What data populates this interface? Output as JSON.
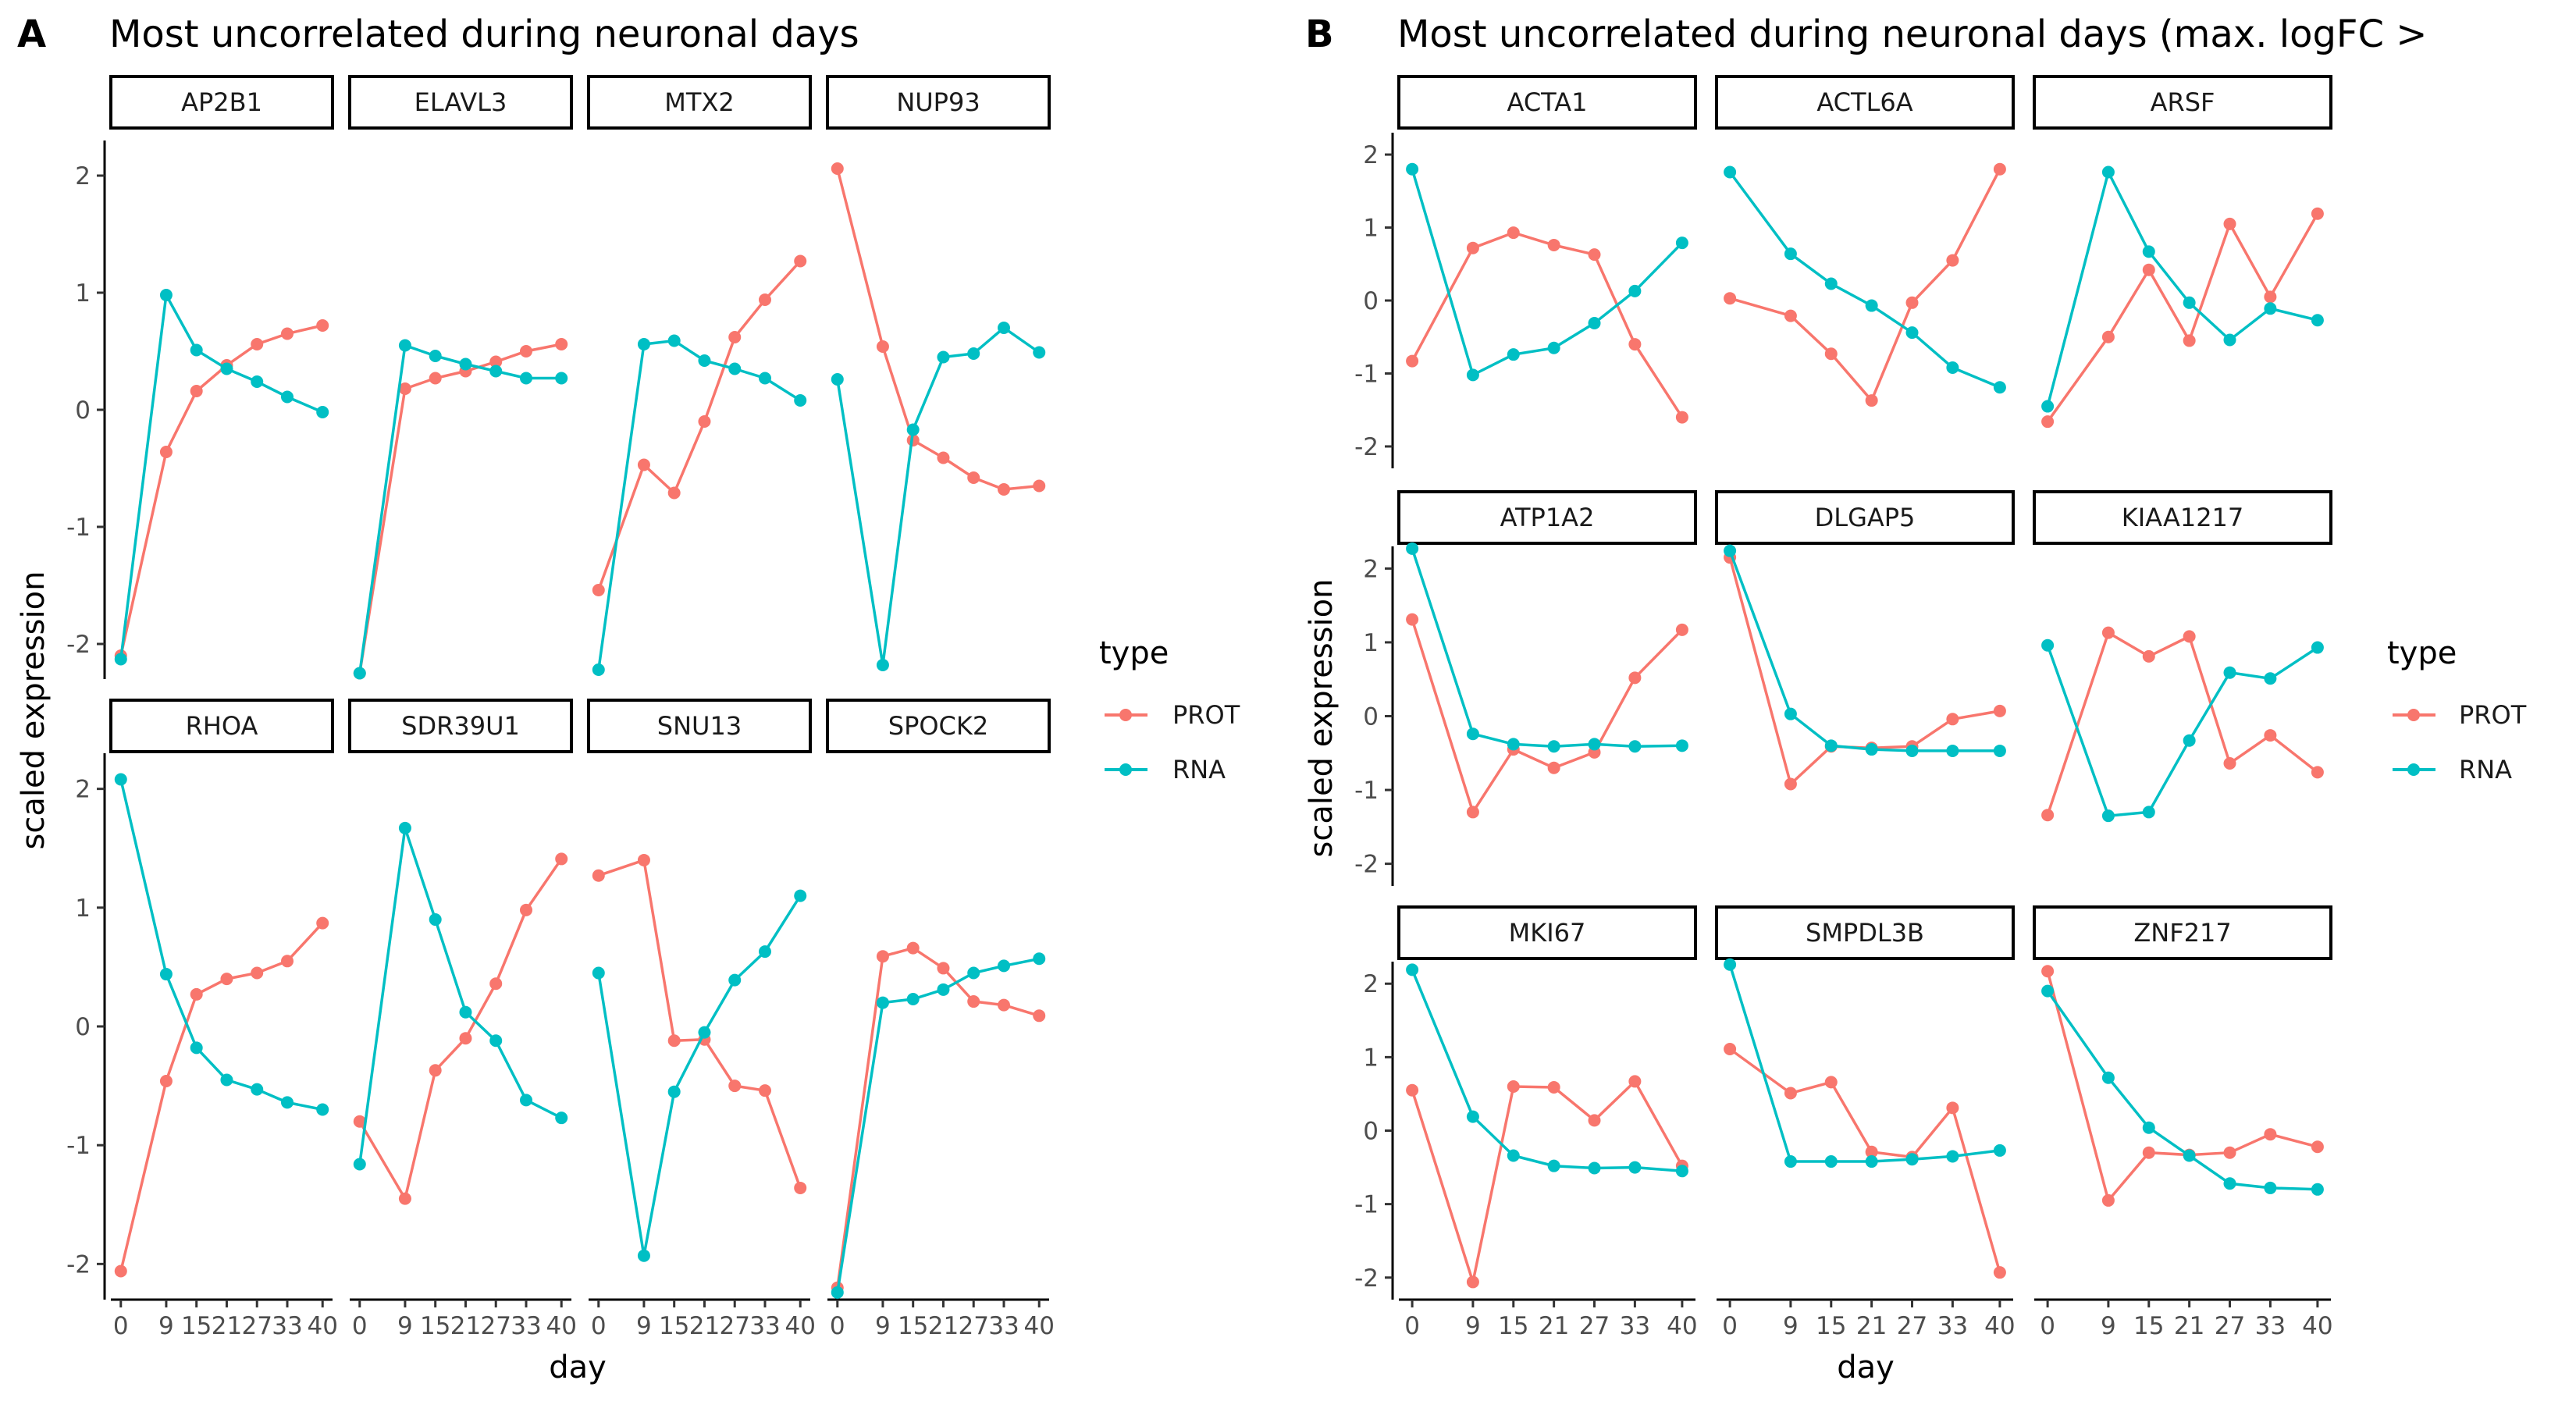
{
  "panels": [
    {
      "letter": "A",
      "title": "Most uncorrelated during neuronal days",
      "xlabel": "day",
      "ylabel": "scaled expression",
      "legend_title": "type",
      "chart_data": {
        "type": "line",
        "x": [
          0,
          9,
          15,
          21,
          27,
          33,
          40
        ],
        "x_tick_labels": [
          "0",
          "9",
          "15",
          "21",
          "27",
          "33",
          "40"
        ],
        "ylim": [
          -2.3,
          2.3
        ],
        "y_ticks": [
          -2,
          -1,
          0,
          1,
          2
        ],
        "legend": [
          {
            "name": "PROT",
            "color": "#F8766D"
          },
          {
            "name": "RNA",
            "color": "#00BFC4"
          }
        ],
        "facets": [
          {
            "name": "AP2B1",
            "series": {
              "PROT": [
                -2.1,
                -0.36,
                0.16,
                0.38,
                0.56,
                0.65,
                0.72
              ],
              "RNA": [
                -2.13,
                0.98,
                0.51,
                0.35,
                0.24,
                0.11,
                -0.02
              ]
            }
          },
          {
            "name": "ELAVL3",
            "series": {
              "PROT": [
                -2.25,
                0.18,
                0.27,
                0.33,
                0.41,
                0.5,
                0.56
              ],
              "RNA": [
                -2.25,
                0.55,
                0.46,
                0.39,
                0.33,
                0.27,
                0.27
              ]
            }
          },
          {
            "name": "MTX2",
            "series": {
              "PROT": [
                -1.54,
                -0.47,
                -0.71,
                -0.1,
                0.62,
                0.94,
                1.27
              ],
              "RNA": [
                -2.22,
                0.56,
                0.59,
                0.42,
                0.35,
                0.27,
                0.08
              ]
            }
          },
          {
            "name": "NUP93",
            "series": {
              "PROT": [
                2.06,
                0.54,
                -0.26,
                -0.41,
                -0.58,
                -0.68,
                -0.65
              ],
              "RNA": [
                0.26,
                -2.18,
                -0.17,
                0.45,
                0.48,
                0.7,
                0.49
              ]
            }
          },
          {
            "name": "RHOA",
            "series": {
              "PROT": [
                -2.06,
                -0.46,
                0.27,
                0.4,
                0.45,
                0.55,
                0.87
              ],
              "RNA": [
                2.08,
                0.44,
                -0.18,
                -0.45,
                -0.53,
                -0.64,
                -0.7
              ]
            }
          },
          {
            "name": "SDR39U1",
            "series": {
              "PROT": [
                -0.8,
                -1.45,
                -0.37,
                -0.1,
                0.36,
                0.98,
                1.41
              ],
              "RNA": [
                -1.16,
                1.67,
                0.9,
                0.12,
                -0.12,
                -0.62,
                -0.77
              ]
            }
          },
          {
            "name": "SNU13",
            "series": {
              "PROT": [
                1.27,
                1.4,
                -0.12,
                -0.11,
                -0.5,
                -0.54,
                -1.36
              ],
              "RNA": [
                0.45,
                -1.93,
                -0.55,
                -0.05,
                0.39,
                0.63,
                1.1
              ]
            }
          },
          {
            "name": "SPOCK2",
            "series": {
              "PROT": [
                -2.2,
                0.59,
                0.66,
                0.49,
                0.21,
                0.18,
                0.09
              ],
              "RNA": [
                -2.24,
                0.2,
                0.23,
                0.31,
                0.45,
                0.51,
                0.57
              ]
            }
          }
        ]
      }
    },
    {
      "letter": "B",
      "title": "Most uncorrelated during neuronal days (max. logFC >",
      "xlabel": "day",
      "ylabel": "scaled expression",
      "legend_title": "type",
      "chart_data": {
        "type": "line",
        "x": [
          0,
          9,
          15,
          21,
          27,
          33,
          40
        ],
        "x_tick_labels": [
          "0",
          "9",
          "15",
          "21",
          "27",
          "33",
          "40"
        ],
        "ylim": [
          -2.3,
          2.3
        ],
        "y_ticks": [
          -2,
          -1,
          0,
          1,
          2
        ],
        "legend": [
          {
            "name": "PROT",
            "color": "#F8766D"
          },
          {
            "name": "RNA",
            "color": "#00BFC4"
          }
        ],
        "facets": [
          {
            "name": "ACTA1",
            "series": {
              "PROT": [
                -0.83,
                0.72,
                0.93,
                0.76,
                0.63,
                -0.6,
                -1.6
              ],
              "RNA": [
                1.8,
                -1.02,
                -0.74,
                -0.65,
                -0.31,
                0.13,
                0.79
              ]
            }
          },
          {
            "name": "ACTL6A",
            "series": {
              "PROT": [
                0.03,
                -0.21,
                -0.73,
                -1.37,
                -0.03,
                0.55,
                1.8
              ],
              "RNA": [
                1.76,
                0.64,
                0.23,
                -0.07,
                -0.44,
                -0.92,
                -1.19
              ]
            }
          },
          {
            "name": "ARSF",
            "series": {
              "PROT": [
                -1.66,
                -0.5,
                0.42,
                -0.55,
                1.05,
                0.05,
                1.19
              ],
              "RNA": [
                -1.45,
                1.76,
                0.67,
                -0.03,
                -0.54,
                -0.11,
                -0.27
              ]
            }
          },
          {
            "name": "ATP1A2",
            "series": {
              "PROT": [
                1.31,
                -1.3,
                -0.45,
                -0.7,
                -0.49,
                0.52,
                1.17
              ],
              "RNA": [
                2.27,
                -0.24,
                -0.38,
                -0.41,
                -0.38,
                -0.41,
                -0.4
              ]
            }
          },
          {
            "name": "DLGAP5",
            "series": {
              "PROT": [
                2.15,
                -0.92,
                -0.41,
                -0.43,
                -0.41,
                -0.04,
                0.07
              ],
              "RNA": [
                2.24,
                0.03,
                -0.4,
                -0.45,
                -0.47,
                -0.47,
                -0.47
              ]
            }
          },
          {
            "name": "KIAA1217",
            "series": {
              "PROT": [
                -1.34,
                1.13,
                0.81,
                1.08,
                -0.64,
                -0.26,
                -0.76
              ],
              "RNA": [
                0.96,
                -1.35,
                -1.3,
                -0.33,
                0.59,
                0.51,
                0.93
              ]
            }
          },
          {
            "name": "MKI67",
            "series": {
              "PROT": [
                0.55,
                -2.06,
                0.6,
                0.59,
                0.14,
                0.67,
                -0.48
              ],
              "RNA": [
                2.19,
                0.19,
                -0.34,
                -0.48,
                -0.51,
                -0.5,
                -0.55
              ]
            }
          },
          {
            "name": "SMPDL3B",
            "series": {
              "PROT": [
                1.11,
                0.51,
                0.66,
                -0.29,
                -0.36,
                0.31,
                -1.93
              ],
              "RNA": [
                2.26,
                -0.42,
                -0.42,
                -0.42,
                -0.39,
                -0.35,
                -0.27
              ]
            }
          },
          {
            "name": "ZNF217",
            "series": {
              "PROT": [
                2.17,
                -0.95,
                -0.3,
                -0.33,
                -0.3,
                -0.05,
                -0.22
              ],
              "RNA": [
                1.9,
                0.72,
                0.04,
                -0.34,
                -0.72,
                -0.78,
                -0.8
              ]
            }
          }
        ]
      }
    }
  ]
}
